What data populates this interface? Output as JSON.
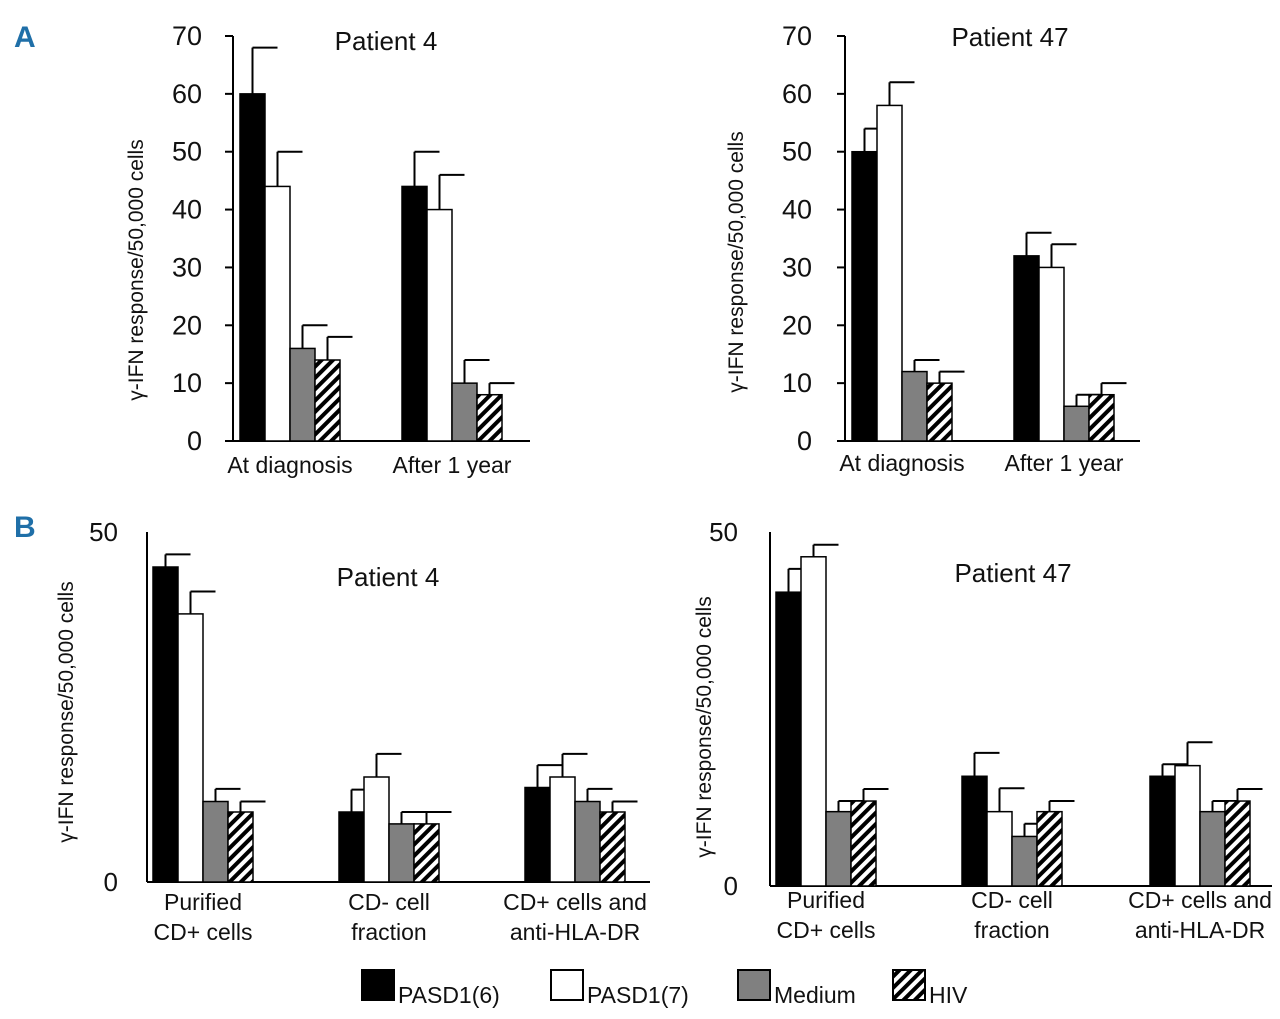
{
  "panels": [
    {
      "letter": "A"
    },
    {
      "letter": "B"
    }
  ],
  "legend": [
    {
      "label": "PASD1(6)",
      "style": "black"
    },
    {
      "label": "PASD1(7)",
      "style": "white"
    },
    {
      "label": "Medium",
      "style": "gray"
    },
    {
      "label": "HIV",
      "style": "hatch"
    }
  ],
  "colors": {
    "black": "#000000",
    "white": "#ffffff",
    "gray": "#808080",
    "panel_letter": "#1f6fa8"
  },
  "chart_data": [
    {
      "type": "bar",
      "panel": "A",
      "title": "Patient 4",
      "ylabel": "γ-IFN response/50,000 cells",
      "ylim": [
        0,
        70
      ],
      "yticks": [
        "0",
        "10",
        "20",
        "30",
        "40",
        "50",
        "60",
        "70"
      ],
      "categories": [
        [
          "At diagnosis"
        ],
        [
          "After 1 year"
        ]
      ],
      "series": [
        {
          "name": "PASD1(6)",
          "values": [
            60,
            44
          ],
          "errors": [
            8,
            6
          ]
        },
        {
          "name": "PASD1(7)",
          "values": [
            44,
            40
          ],
          "errors": [
            6,
            6
          ]
        },
        {
          "name": "Medium",
          "values": [
            16,
            10
          ],
          "errors": [
            4,
            4
          ]
        },
        {
          "name": "HIV",
          "values": [
            14,
            8
          ],
          "errors": [
            4,
            2
          ]
        }
      ]
    },
    {
      "type": "bar",
      "panel": "A",
      "title": "Patient 47",
      "ylabel": "γ-IFN response/50,000 cells",
      "ylim": [
        0,
        70
      ],
      "yticks": [
        "0",
        "10",
        "20",
        "30",
        "40",
        "50",
        "60",
        "70"
      ],
      "categories": [
        [
          "At diagnosis"
        ],
        [
          "After 1 year"
        ]
      ],
      "series": [
        {
          "name": "PASD1(6)",
          "values": [
            50,
            32
          ],
          "errors": [
            4,
            4
          ]
        },
        {
          "name": "PASD1(7)",
          "values": [
            58,
            30
          ],
          "errors": [
            4,
            4
          ]
        },
        {
          "name": "Medium",
          "values": [
            12,
            6
          ],
          "errors": [
            2,
            2
          ]
        },
        {
          "name": "HIV",
          "values": [
            10,
            8
          ],
          "errors": [
            2,
            2
          ]
        }
      ]
    },
    {
      "type": "bar",
      "panel": "B",
      "title": "Patient 4",
      "ylabel": "γ-IFN response/50,000 cells",
      "ylim": [
        0,
        50
      ],
      "yticks": [
        "0",
        "50"
      ],
      "categories": [
        [
          "Purified",
          "CD+ cells"
        ],
        [
          "CD- cell",
          "fraction"
        ],
        [
          "CD+ cells and",
          "anti-HLA-DR"
        ]
      ],
      "series": [
        {
          "name": "PASD1(6)",
          "values": [
            45,
            10,
            13.5
          ],
          "errors": [
            1.8,
            3.2,
            3.2
          ]
        },
        {
          "name": "PASD1(7)",
          "values": [
            38.3,
            15,
            15
          ],
          "errors": [
            3.2,
            3.3,
            3.3
          ]
        },
        {
          "name": "Medium",
          "values": [
            11.5,
            8.3,
            11.5
          ],
          "errors": [
            1.8,
            1.7,
            1.8
          ]
        },
        {
          "name": "HIV",
          "values": [
            10,
            8.3,
            10
          ],
          "errors": [
            1.5,
            1.7,
            1.5
          ]
        }
      ]
    },
    {
      "type": "bar",
      "panel": "B",
      "title": "Patient 47",
      "ylabel": "γ-IFN response/50,000 cells",
      "ylim": [
        0,
        50
      ],
      "yticks": [
        "0",
        "50"
      ],
      "categories": [
        [
          "Purified",
          "CD+ cells"
        ],
        [
          "CD- cell",
          "fraction"
        ],
        [
          "CD+ cells and",
          "anti-HLA-DR"
        ]
      ],
      "series": [
        {
          "name": "PASD1(6)",
          "values": [
            41.5,
            15.5,
            15.5
          ],
          "errors": [
            3.3,
            3.3,
            1.7
          ]
        },
        {
          "name": "PASD1(7)",
          "values": [
            46.5,
            10.5,
            17
          ],
          "errors": [
            1.7,
            3.3,
            3.3
          ]
        },
        {
          "name": "Medium",
          "values": [
            10.5,
            7,
            10.5
          ],
          "errors": [
            1.5,
            1.8,
            1.5
          ]
        },
        {
          "name": "HIV",
          "values": [
            12,
            10.5,
            12
          ],
          "errors": [
            1.7,
            1.5,
            1.7
          ]
        }
      ]
    }
  ]
}
